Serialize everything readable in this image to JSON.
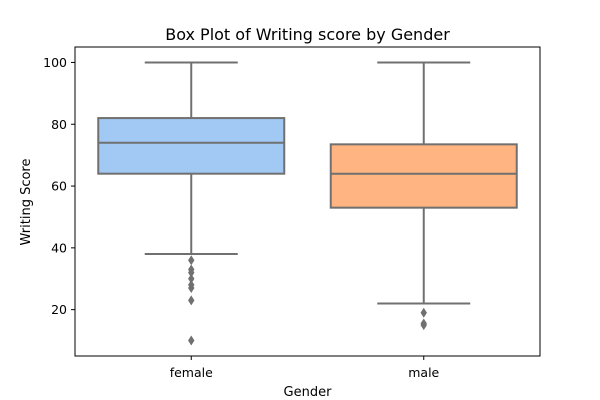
{
  "chart_data": {
    "type": "box",
    "title": "Box Plot of Writing score by Gender",
    "xlabel": "Gender",
    "ylabel": "Writing Score",
    "ylim": [
      5,
      105
    ],
    "yticks": [
      20,
      40,
      60,
      80,
      100
    ],
    "grid": false,
    "categories": [
      "female",
      "male"
    ],
    "boxes": [
      {
        "category": "female",
        "color": "#a1c9f4",
        "whisker_low": 38,
        "q1": 64,
        "median": 74,
        "q3": 82,
        "whisker_high": 100,
        "outliers": [
          36,
          33,
          32,
          30,
          28,
          27,
          23,
          10
        ]
      },
      {
        "category": "male",
        "color": "#ffb482",
        "whisker_low": 22,
        "q1": 53,
        "median": 64,
        "q3": 73.5,
        "whisker_high": 100,
        "outliers": [
          19,
          15.5,
          15
        ]
      }
    ],
    "line_color": "#707070"
  }
}
